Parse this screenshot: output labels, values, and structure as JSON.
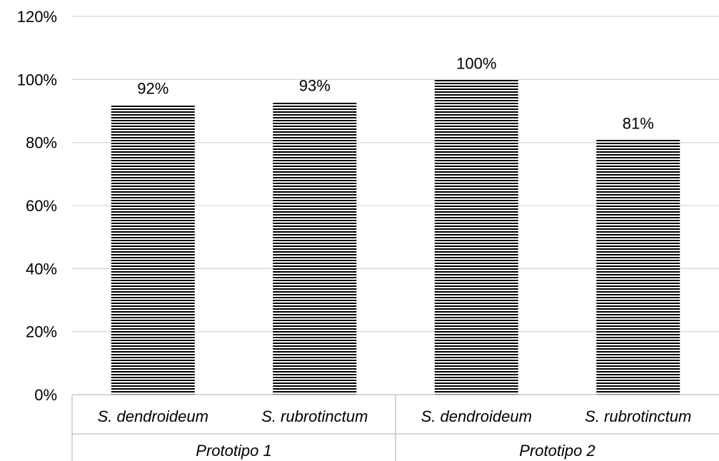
{
  "chart_data": {
    "type": "bar",
    "categories": [
      "S. dendroideum",
      "S. rubrotinctum",
      "S. dendroideum",
      "S. rubrotinctum"
    ],
    "groups": [
      {
        "label": "Prototipo 1",
        "categories": [
          "S. dendroideum",
          "S. rubrotinctum"
        ]
      },
      {
        "label": "Prototipo 2",
        "categories": [
          "S. dendroideum",
          "S. rubrotinctum"
        ]
      }
    ],
    "values": [
      92,
      93,
      100,
      81
    ],
    "value_labels": [
      "92%",
      "93%",
      "100%",
      "81%"
    ],
    "ylim": [
      0,
      120
    ],
    "yticks": [
      0,
      20,
      40,
      60,
      80,
      100,
      120
    ],
    "ytick_labels": [
      "0%",
      "20%",
      "40%",
      "60%",
      "80%",
      "100%",
      "120%"
    ],
    "title": "",
    "xlabel": "",
    "ylabel": "",
    "grid": true,
    "legend": "none",
    "bar_pattern": "horizontal black stripes"
  }
}
